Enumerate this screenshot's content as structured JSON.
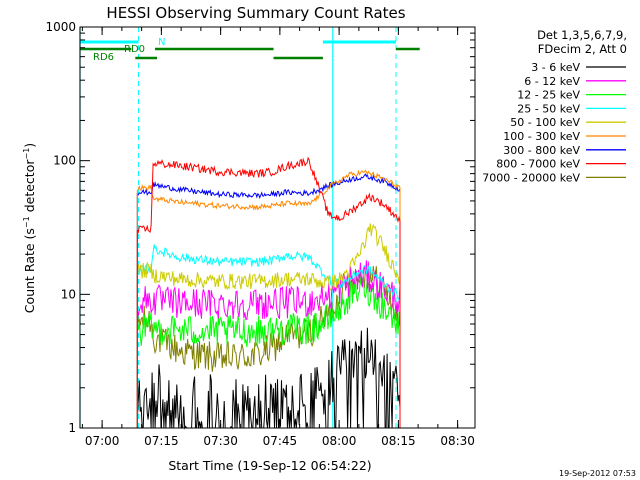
{
  "chart_data": {
    "type": "line",
    "title": "HESSI Observing Summary Count Rates",
    "xlabel": "Start Time (19-Sep-12 06:54:22)",
    "ylabel": "Count Rate (s⁻¹ detector⁻¹)",
    "y_scale": "log",
    "ylim": [
      1,
      1000
    ],
    "xlim_minutes_after_0654": [
      0,
      100
    ],
    "x_ticks": [
      {
        "label": "07:00",
        "minute": 5.6
      },
      {
        "label": "07:15",
        "minute": 20.6
      },
      {
        "label": "07:30",
        "minute": 35.6
      },
      {
        "label": "07:45",
        "minute": 50.6
      },
      {
        "label": "08:00",
        "minute": 65.6
      },
      {
        "label": "08:15",
        "minute": 80.6
      },
      {
        "label": "08:30",
        "minute": 95.6
      }
    ],
    "y_ticks": [
      {
        "label": "1",
        "value": 1
      },
      {
        "label": "10",
        "value": 10
      },
      {
        "label": "100",
        "value": 100
      },
      {
        "label": "1000",
        "value": 1000
      }
    ],
    "legend": {
      "header": [
        "Det 1,3,5,6,7,9,",
        "FDecim 2, Att 0"
      ],
      "placement": "right"
    },
    "series": [
      {
        "name": "3 - 6 keV",
        "color": "#000000",
        "x": [
          14.5,
          18,
          25,
          35,
          45,
          49,
          52,
          58,
          63,
          66,
          68,
          72,
          73.5,
          77,
          81
        ],
        "y": [
          1.8,
          1.9,
          1.6,
          1.5,
          1.5,
          1.5,
          1.6,
          1.6,
          2.2,
          2.6,
          3.1,
          3.5,
          3.4,
          3.0,
          2.2
        ]
      },
      {
        "name": "6 - 12 keV",
        "color": "#ff00ff",
        "x": [
          14.5,
          18,
          18.5,
          25,
          35,
          45,
          49,
          52,
          58,
          63,
          66,
          68,
          72,
          73.5,
          77,
          81
        ],
        "y": [
          8.8,
          9.2,
          9.0,
          8.6,
          8.5,
          8.5,
          8.6,
          8.7,
          8.8,
          9.8,
          11,
          12.5,
          14,
          13,
          11,
          9.0
        ]
      },
      {
        "name": "12 - 25 keV",
        "color": "#00ff00",
        "x": [
          14.5,
          18,
          18.5,
          25,
          35,
          45,
          49,
          52,
          58,
          63,
          66,
          68,
          72,
          73.5,
          77,
          81
        ],
        "y": [
          5.2,
          5.6,
          5.5,
          5.4,
          5.3,
          5.3,
          5.4,
          5.5,
          5.5,
          6.5,
          8.0,
          9.5,
          11.5,
          10.5,
          8.0,
          5.8
        ]
      },
      {
        "name": "25 - 50 keV",
        "color": "#00ffff",
        "x": [
          14.5,
          18,
          18.5,
          25,
          35,
          45,
          49,
          52,
          58,
          63,
          66,
          68,
          72,
          73.5,
          77,
          81
        ],
        "y": [
          15,
          15.5,
          22,
          19,
          17.5,
          17.5,
          18,
          19.5,
          19,
          13,
          12,
          13,
          15.5,
          15,
          12,
          9.5
        ]
      },
      {
        "name": "50 - 100 keV",
        "color": "#cccc00",
        "x": [
          14.5,
          18,
          18.5,
          25,
          35,
          45,
          49,
          52,
          58,
          63,
          66,
          68,
          70,
          72,
          73.5,
          77,
          81
        ],
        "y": [
          15,
          15,
          14,
          13,
          12.5,
          12.5,
          12.8,
          13,
          13,
          12,
          13,
          15,
          18,
          24,
          32,
          22,
          13
        ]
      },
      {
        "name": "100 - 300 keV",
        "color": "#ff8800",
        "x": [
          14.5,
          18,
          18.5,
          25,
          35,
          45,
          49,
          52,
          58,
          63,
          66,
          68,
          72,
          73.5,
          77,
          81
        ],
        "y": [
          62,
          63,
          52,
          49,
          46,
          45,
          46,
          48,
          47,
          63,
          72,
          78,
          82,
          80,
          73,
          63
        ]
      },
      {
        "name": "300 - 800 keV",
        "color": "#0000ff",
        "x": [
          14.5,
          18,
          18.5,
          25,
          35,
          45,
          49,
          52,
          58,
          63,
          66,
          68,
          72,
          73.5,
          77,
          81
        ],
        "y": [
          58,
          58,
          66,
          61,
          56,
          55,
          56,
          58,
          57,
          65,
          69,
          72,
          76,
          75,
          70,
          61
        ]
      },
      {
        "name": "800 - 7000 keV",
        "color": "#ff0000",
        "x": [
          14.5,
          18,
          18.5,
          25,
          35,
          45,
          49,
          52,
          58,
          63,
          66,
          68,
          72,
          73.5,
          77,
          81
        ],
        "y": [
          30,
          31,
          96,
          92,
          83,
          80,
          83,
          90,
          100,
          39,
          37,
          41,
          50,
          54,
          47,
          36
        ]
      },
      {
        "name": "7000 - 20000 keV",
        "color": "#808000",
        "x": [
          14.5,
          18,
          18.5,
          25,
          35,
          45,
          49,
          52,
          58,
          63,
          66,
          68,
          72,
          73.5,
          77,
          81
        ],
        "y": [
          6.2,
          6.4,
          4.8,
          3.8,
          3.3,
          3.5,
          4.0,
          4.8,
          5.2,
          7.0,
          10,
          12.5,
          14.5,
          14,
          11,
          6.2
        ]
      }
    ],
    "annotations": {
      "flags": [
        {
          "label": "N",
          "color": "#00ffff",
          "segments": [
            [
              0,
              14.8
            ],
            [
              61.5,
              80
            ]
          ]
        },
        {
          "label": "RD0",
          "color": "#008000",
          "segments": [
            [
              0,
              13
            ],
            [
              19,
              49
            ],
            [
              80,
              86
            ]
          ]
        },
        {
          "label": "RD6",
          "color": "#008000",
          "segments": [
            [
              14,
              19.5
            ],
            [
              49,
              61.5
            ]
          ]
        }
      ],
      "solid_verticals_cyan": [
        0,
        64
      ],
      "dashed_verticals_cyan": [
        14.8,
        80
      ]
    },
    "footer_timestamp": "19-Sep-2012 07:53"
  }
}
